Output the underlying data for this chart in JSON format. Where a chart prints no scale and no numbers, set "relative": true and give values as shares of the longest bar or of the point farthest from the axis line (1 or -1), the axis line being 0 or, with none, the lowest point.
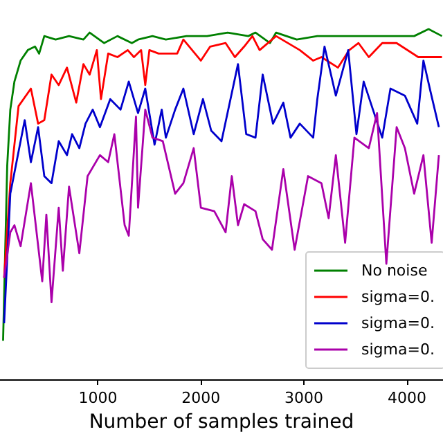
{
  "chart_data": {
    "type": "line",
    "relative": true,
    "xlabel": "Number of samples trained",
    "xlim": [
      50,
      4350
    ],
    "xticks": [
      1000,
      2000,
      3000,
      4000
    ],
    "legend": "bottom right",
    "grid": false,
    "marker": "none",
    "line_style": "solid",
    "series": [
      {
        "name": "No noise",
        "color": "#008000",
        "x": [
          80,
          120,
          150,
          190,
          250,
          320,
          390,
          430,
          480,
          590,
          720,
          860,
          920,
          1060,
          1190,
          1330,
          1390,
          1530,
          1660,
          1860,
          2060,
          2260,
          2460,
          2530,
          2670,
          2730,
          2930,
          3130,
          3330,
          3540,
          3740,
          3870,
          4070,
          4210,
          4340
        ],
        "values": [
          0.11,
          0.61,
          0.77,
          0.85,
          0.91,
          0.94,
          0.95,
          0.93,
          0.98,
          0.97,
          0.98,
          0.97,
          0.99,
          0.96,
          0.98,
          0.96,
          0.97,
          0.98,
          0.97,
          0.98,
          0.98,
          0.99,
          0.98,
          0.99,
          0.96,
          0.99,
          0.97,
          0.98,
          0.98,
          0.98,
          0.98,
          0.98,
          0.98,
          1.0,
          0.98
        ]
      },
      {
        "name": "sigma=0.",
        "color": "#ff0000",
        "x": [
          90,
          150,
          230,
          350,
          420,
          480,
          550,
          620,
          700,
          790,
          860,
          920,
          990,
          1030,
          1100,
          1190,
          1290,
          1350,
          1420,
          1460,
          1500,
          1590,
          1770,
          1830,
          2000,
          2090,
          2240,
          2330,
          2420,
          2500,
          2570,
          2730,
          2960,
          3090,
          3170,
          3330,
          3440,
          3530,
          3630,
          3760,
          3900,
          4110,
          4240,
          4340
        ],
        "values": [
          0.29,
          0.56,
          0.78,
          0.83,
          0.73,
          0.74,
          0.87,
          0.84,
          0.89,
          0.79,
          0.9,
          0.87,
          0.94,
          0.8,
          0.93,
          0.92,
          0.94,
          0.92,
          0.94,
          0.84,
          0.94,
          0.93,
          0.93,
          0.97,
          0.91,
          0.95,
          0.96,
          0.92,
          0.95,
          0.98,
          0.94,
          0.98,
          0.94,
          0.91,
          0.92,
          0.89,
          0.94,
          0.96,
          0.92,
          0.96,
          0.96,
          0.92,
          0.92,
          0.92
        ]
      },
      {
        "name": "sigma=0.",
        "color": "#0000cc",
        "x": [
          90,
          150,
          290,
          350,
          420,
          480,
          550,
          620,
          700,
          750,
          820,
          880,
          950,
          1020,
          1120,
          1220,
          1300,
          1390,
          1460,
          1550,
          1620,
          1660,
          1750,
          1830,
          1930,
          2020,
          2100,
          2200,
          2360,
          2440,
          2530,
          2600,
          2700,
          2800,
          2870,
          2960,
          3090,
          3130,
          3200,
          3310,
          3430,
          3510,
          3580,
          3670,
          3760,
          3840,
          3980,
          4100,
          4160,
          4230,
          4310
        ],
        "values": [
          0.16,
          0.53,
          0.74,
          0.62,
          0.72,
          0.58,
          0.56,
          0.68,
          0.64,
          0.7,
          0.66,
          0.73,
          0.77,
          0.72,
          0.8,
          0.77,
          0.85,
          0.76,
          0.83,
          0.67,
          0.77,
          0.69,
          0.77,
          0.83,
          0.7,
          0.8,
          0.71,
          0.68,
          0.9,
          0.7,
          0.69,
          0.87,
          0.73,
          0.79,
          0.69,
          0.73,
          0.69,
          0.8,
          0.95,
          0.81,
          0.94,
          0.7,
          0.85,
          0.77,
          0.69,
          0.83,
          0.81,
          0.73,
          0.91,
          0.82,
          0.72
        ]
      },
      {
        "name": "sigma=0.",
        "color": "#aa00aa",
        "x": [
          90,
          150,
          190,
          250,
          350,
          460,
          500,
          550,
          620,
          660,
          720,
          820,
          900,
          1020,
          1100,
          1160,
          1260,
          1300,
          1370,
          1390,
          1460,
          1530,
          1630,
          1750,
          1830,
          1930,
          2000,
          2130,
          2240,
          2300,
          2360,
          2420,
          2530,
          2600,
          2690,
          2800,
          2910,
          3040,
          3170,
          3240,
          3310,
          3400,
          3490,
          3630,
          3710,
          3800,
          3900,
          3980,
          4070,
          4160,
          4240,
          4310
        ],
        "values": [
          0.29,
          0.42,
          0.44,
          0.38,
          0.56,
          0.28,
          0.47,
          0.22,
          0.49,
          0.31,
          0.55,
          0.36,
          0.58,
          0.64,
          0.62,
          0.7,
          0.44,
          0.41,
          0.75,
          0.49,
          0.77,
          0.69,
          0.68,
          0.53,
          0.56,
          0.66,
          0.49,
          0.48,
          0.42,
          0.58,
          0.44,
          0.5,
          0.48,
          0.4,
          0.37,
          0.6,
          0.37,
          0.58,
          0.56,
          0.46,
          0.64,
          0.39,
          0.69,
          0.66,
          0.76,
          0.33,
          0.72,
          0.66,
          0.53,
          0.64,
          0.39,
          0.64
        ]
      }
    ]
  }
}
